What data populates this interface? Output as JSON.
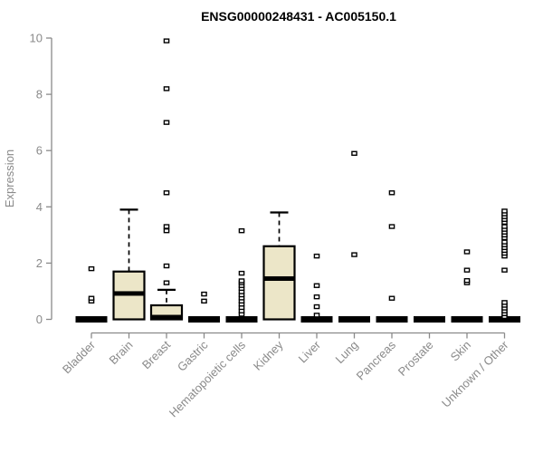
{
  "chart_data": {
    "type": "boxplot",
    "title": "ENSG00000248431 - AC005150.1",
    "xlabel": "",
    "ylabel": "Expression",
    "ylim": [
      0,
      10
    ],
    "yticks": [
      0,
      2,
      4,
      6,
      8,
      10
    ],
    "grid": false,
    "legend": false,
    "categories": [
      "Bladder",
      "Brain",
      "Breast",
      "Gastric",
      "Hematopoietic cells",
      "Kidney",
      "Liver",
      "Lung",
      "Pancreas",
      "Prostate",
      "Skin",
      "Unknown / Other"
    ],
    "series": [
      {
        "name": "Bladder",
        "q1": 0,
        "median": 0,
        "q3": 0,
        "whisker_low": 0,
        "whisker_high": 0,
        "outliers": [
          0.65,
          0.75,
          1.8
        ]
      },
      {
        "name": "Brain",
        "q1": 0,
        "median": 0.92,
        "q3": 1.7,
        "whisker_low": 0,
        "whisker_high": 3.9,
        "outliers": []
      },
      {
        "name": "Breast",
        "q1": 0,
        "median": 0.08,
        "q3": 0.5,
        "whisker_low": 0,
        "whisker_high": 1.05,
        "outliers": [
          1.3,
          1.9,
          3.15,
          3.3,
          4.5,
          7.0,
          8.2,
          9.9
        ]
      },
      {
        "name": "Gastric",
        "q1": 0,
        "median": 0,
        "q3": 0,
        "whisker_low": 0,
        "whisker_high": 0,
        "outliers": [
          0.65,
          0.9
        ]
      },
      {
        "name": "Hematopoietic cells",
        "q1": 0,
        "median": 0,
        "q3": 0,
        "whisker_low": 0,
        "whisker_high": 0,
        "outliers": [
          0.18,
          0.3,
          0.42,
          0.54,
          0.65,
          0.76,
          0.87,
          0.98,
          1.1,
          1.2,
          1.3,
          1.37,
          1.64,
          3.15
        ]
      },
      {
        "name": "Kidney",
        "q1": 0,
        "median": 1.45,
        "q3": 2.6,
        "whisker_low": 0,
        "whisker_high": 3.8,
        "outliers": []
      },
      {
        "name": "Liver",
        "q1": 0,
        "median": 0,
        "q3": 0,
        "whisker_low": 0,
        "whisker_high": 0,
        "outliers": [
          0.15,
          0.45,
          0.8,
          1.2,
          2.25
        ]
      },
      {
        "name": "Lung",
        "q1": 0,
        "median": 0,
        "q3": 0,
        "whisker_low": 0,
        "whisker_high": 0,
        "outliers": [
          2.3,
          5.9
        ]
      },
      {
        "name": "Pancreas",
        "q1": 0,
        "median": 0,
        "q3": 0,
        "whisker_low": 0,
        "whisker_high": 0,
        "outliers": [
          0.75,
          3.3,
          4.5
        ]
      },
      {
        "name": "Prostate",
        "q1": 0,
        "median": 0,
        "q3": 0,
        "whisker_low": 0,
        "whisker_high": 0,
        "outliers": []
      },
      {
        "name": "Skin",
        "q1": 0,
        "median": 0,
        "q3": 0,
        "whisker_low": 0,
        "whisker_high": 0,
        "outliers": [
          1.3,
          1.38,
          1.75,
          2.4
        ]
      },
      {
        "name": "Unknown / Other",
        "q1": 0,
        "median": 0,
        "q3": 0,
        "whisker_low": 0,
        "whisker_high": 0,
        "outliers": [
          0.1,
          0.2,
          0.3,
          0.4,
          0.5,
          0.6,
          1.75,
          2.25,
          2.35,
          2.45,
          2.55,
          2.65,
          2.75,
          2.9,
          3.0,
          3.1,
          3.2,
          3.3,
          3.45,
          3.55,
          3.65,
          3.75,
          3.85
        ]
      }
    ],
    "colors": {
      "box_fill": "#ece6c8",
      "box_border": "#000000",
      "median": "#000000",
      "whisker": "#000000",
      "outlier_fill": "#ffffff",
      "outlier_border": "#000000",
      "axis": "#8a8a8a",
      "tick_text": "#8a8a8a",
      "title_text": "#000000",
      "background": "#ffffff"
    }
  }
}
